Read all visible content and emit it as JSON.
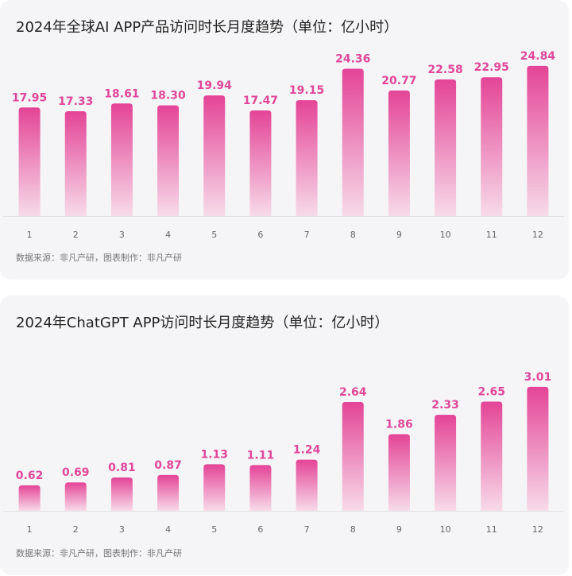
{
  "colors": {
    "bar_top": "#e44497",
    "bar_bottom": "#f7dbe9",
    "value_label": "#e0479a",
    "card_bg": "#f5f5f7"
  },
  "chart_data": [
    {
      "type": "bar",
      "title": "2024年全球AI APP产品访问时长月度趋势（单位：亿小时）",
      "source": "数据来源：非凡产研，图表制作：非凡产研",
      "categories": [
        "1",
        "2",
        "3",
        "4",
        "5",
        "6",
        "7",
        "8",
        "9",
        "10",
        "11",
        "12"
      ],
      "values": [
        17.95,
        17.33,
        18.61,
        18.3,
        19.94,
        17.47,
        19.15,
        24.36,
        20.77,
        22.58,
        22.95,
        24.84
      ],
      "value_labels": [
        "17.95",
        "17.33",
        "18.61",
        "18.30",
        "19.94",
        "17.47",
        "19.15",
        "24.36",
        "20.77",
        "22.58",
        "22.95",
        "24.84"
      ],
      "ylim": [
        0,
        26
      ],
      "xlabel": "",
      "ylabel": "",
      "grid": false,
      "legend": "none"
    },
    {
      "type": "bar",
      "title": "2024年ChatGPT APP访问时长月度趋势（单位：亿小时）",
      "source": "数据来源：非凡产研，图表制作：非凡产研",
      "categories": [
        "1",
        "2",
        "3",
        "4",
        "5",
        "6",
        "7",
        "8",
        "9",
        "10",
        "11",
        "12"
      ],
      "values": [
        0.62,
        0.69,
        0.81,
        0.87,
        1.13,
        1.11,
        1.24,
        2.64,
        1.86,
        2.33,
        2.65,
        3.01
      ],
      "value_labels": [
        "0.62",
        "0.69",
        "0.81",
        "0.87",
        "1.13",
        "1.11",
        "1.24",
        "2.64",
        "1.86",
        "2.33",
        "2.65",
        "3.01"
      ],
      "ylim": [
        0,
        3.2
      ],
      "xlabel": "",
      "ylabel": "",
      "grid": false,
      "legend": "none"
    }
  ]
}
